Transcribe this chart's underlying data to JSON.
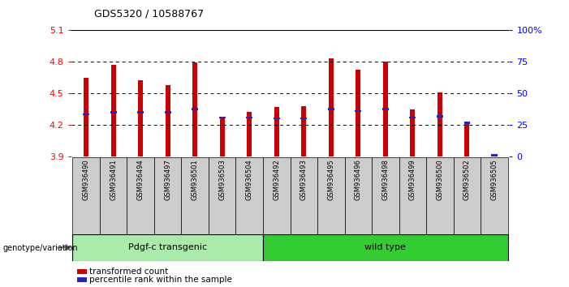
{
  "title": "GDS5320 / 10588767",
  "samples": [
    "GSM936490",
    "GSM936491",
    "GSM936494",
    "GSM936497",
    "GSM936501",
    "GSM936503",
    "GSM936504",
    "GSM936492",
    "GSM936493",
    "GSM936495",
    "GSM936496",
    "GSM936498",
    "GSM936499",
    "GSM936500",
    "GSM936502",
    "GSM936505"
  ],
  "red_values": [
    4.65,
    4.77,
    4.62,
    4.58,
    4.79,
    4.27,
    4.32,
    4.37,
    4.38,
    4.83,
    4.72,
    4.8,
    4.35,
    4.51,
    4.22,
    3.91
  ],
  "blue_values": [
    4.3,
    4.32,
    4.32,
    4.32,
    4.35,
    4.27,
    4.27,
    4.26,
    4.26,
    4.35,
    4.33,
    4.35,
    4.27,
    4.28,
    4.22,
    3.91
  ],
  "baseline": 3.9,
  "ylim_left": [
    3.9,
    5.1
  ],
  "ylim_right": [
    0,
    100
  ],
  "yticks_left": [
    3.9,
    4.2,
    4.5,
    4.8,
    5.1
  ],
  "yticks_right": [
    0,
    25,
    50,
    75,
    100
  ],
  "ytick_labels_right": [
    "0",
    "25",
    "50",
    "75",
    "100%"
  ],
  "group1_label": "Pdgf-c transgenic",
  "group2_label": "wild type",
  "group1_count": 7,
  "group2_count": 9,
  "genotype_label": "genotype/variation",
  "legend1": "transformed count",
  "legend2": "percentile rank within the sample",
  "bar_color": "#cc0000",
  "blue_color": "#2222cc",
  "group1_bg": "#aaeaaa",
  "group2_bg": "#33cc33",
  "tick_bg": "#cccccc",
  "bar_width": 0.18
}
